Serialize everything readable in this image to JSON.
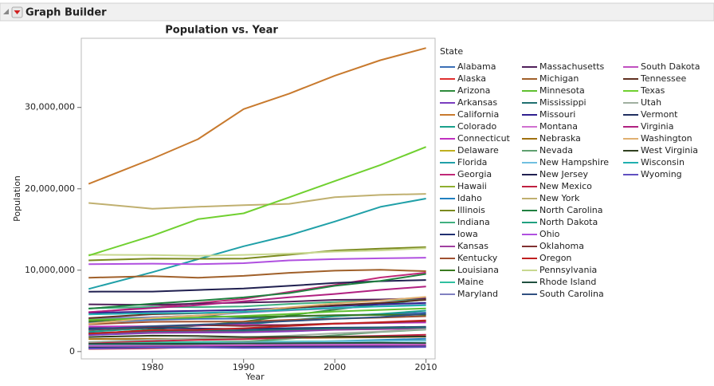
{
  "header": {
    "title": "Graph Builder"
  },
  "chart_data": {
    "type": "line",
    "title": "Population vs. Year",
    "x_label": "Year",
    "y_label": "Population",
    "legend_title": "State",
    "x": [
      1973,
      1980,
      1985,
      1990,
      1995,
      2000,
      2005,
      2010
    ],
    "xlim": [
      1972.2,
      2011
    ],
    "xticks": [
      1980,
      1990,
      2000,
      2010
    ],
    "ylim": [
      -900000,
      38500000
    ],
    "yticks": [
      0,
      {
        "value": 10000000,
        "label": "10,000,000"
      },
      {
        "value": 20000000,
        "label": "20,000,000"
      },
      {
        "value": 30000000,
        "label": "30,000,000"
      }
    ],
    "legend": "right",
    "series": [
      {
        "name": "Alabama",
        "color": "#3b6fb6",
        "values": [
          3540000,
          3900000,
          4020000,
          4050000,
          4300000,
          4450000,
          4570000,
          4780000
        ]
      },
      {
        "name": "Alaska",
        "color": "#e03030",
        "values": [
          330000,
          400000,
          540000,
          550000,
          600000,
          630000,
          660000,
          710000
        ]
      },
      {
        "name": "Arizona",
        "color": "#2e8b3c",
        "values": [
          2120000,
          2720000,
          3180000,
          3680000,
          4430000,
          5160000,
          5840000,
          6390000
        ]
      },
      {
        "name": "Arkansas",
        "color": "#7a3ebf",
        "values": [
          2030000,
          2290000,
          2330000,
          2350000,
          2480000,
          2680000,
          2780000,
          2920000
        ]
      },
      {
        "name": "California",
        "color": "#c87a2e",
        "values": [
          20600000,
          23700000,
          26100000,
          29800000,
          31700000,
          33900000,
          35800000,
          37300000
        ]
      },
      {
        "name": "Colorado",
        "color": "#1aa08c",
        "values": [
          2440000,
          2890000,
          3230000,
          3290000,
          3830000,
          4330000,
          4630000,
          5030000
        ]
      },
      {
        "name": "Connecticut",
        "color": "#c030c0",
        "values": [
          3080000,
          3110000,
          3200000,
          3290000,
          3270000,
          3410000,
          3510000,
          3570000
        ]
      },
      {
        "name": "Delaware",
        "color": "#c0b020",
        "values": [
          570000,
          590000,
          620000,
          670000,
          730000,
          780000,
          840000,
          900000
        ]
      },
      {
        "name": "Florida",
        "color": "#20a0a8",
        "values": [
          7700000,
          9750000,
          11350000,
          12940000,
          14290000,
          15980000,
          17780000,
          18800000
        ]
      },
      {
        "name": "Georgia",
        "color": "#c02878",
        "values": [
          4800000,
          5460000,
          5960000,
          6480000,
          7330000,
          8190000,
          9100000,
          9690000
        ]
      },
      {
        "name": "Hawaii",
        "color": "#8fae30",
        "values": [
          850000,
          970000,
          1040000,
          1110000,
          1190000,
          1210000,
          1270000,
          1360000
        ]
      },
      {
        "name": "Idaho",
        "color": "#2080c0",
        "values": [
          770000,
          940000,
          990000,
          1010000,
          1180000,
          1290000,
          1430000,
          1570000
        ]
      },
      {
        "name": "Illinois",
        "color": "#7b8a1f",
        "values": [
          11200000,
          11430000,
          11400000,
          11430000,
          11900000,
          12420000,
          12650000,
          12830000
        ]
      },
      {
        "name": "Indiana",
        "color": "#40b080",
        "values": [
          5300000,
          5490000,
          5460000,
          5540000,
          5850000,
          6080000,
          6270000,
          6480000
        ]
      },
      {
        "name": "Iowa",
        "color": "#203070",
        "values": [
          2870000,
          2910000,
          2830000,
          2780000,
          2870000,
          2930000,
          2970000,
          3050000
        ]
      },
      {
        "name": "Kansas",
        "color": "#a040a0",
        "values": [
          2280000,
          2360000,
          2430000,
          2480000,
          2600000,
          2690000,
          2750000,
          2850000
        ]
      },
      {
        "name": "Kentucky",
        "color": "#a05030",
        "values": [
          3350000,
          3660000,
          3690000,
          3690000,
          3890000,
          4040000,
          4180000,
          4340000
        ]
      },
      {
        "name": "Louisiana",
        "color": "#3a7a20",
        "values": [
          3700000,
          4210000,
          4410000,
          4220000,
          4350000,
          4470000,
          4500000,
          4530000
        ]
      },
      {
        "name": "Maine",
        "color": "#30c0a0",
        "values": [
          1050000,
          1130000,
          1160000,
          1230000,
          1240000,
          1270000,
          1320000,
          1330000
        ]
      },
      {
        "name": "Maryland",
        "color": "#8080c0",
        "values": [
          4070000,
          4220000,
          4390000,
          4780000,
          5070000,
          5300000,
          5580000,
          5770000
        ]
      },
      {
        "name": "Massachusetts",
        "color": "#50205a",
        "values": [
          5800000,
          5740000,
          5880000,
          6020000,
          6140000,
          6350000,
          6400000,
          6550000
        ]
      },
      {
        "name": "Michigan",
        "color": "#a0602a",
        "values": [
          9080000,
          9260000,
          9080000,
          9300000,
          9680000,
          9940000,
          10050000,
          9880000
        ]
      },
      {
        "name": "Minnesota",
        "color": "#60c030",
        "values": [
          3900000,
          4080000,
          4190000,
          4380000,
          4610000,
          4920000,
          5120000,
          5300000
        ]
      },
      {
        "name": "Mississippi",
        "color": "#207070",
        "values": [
          2270000,
          2520000,
          2590000,
          2580000,
          2720000,
          2840000,
          2900000,
          2970000
        ]
      },
      {
        "name": "Missouri",
        "color": "#302090",
        "values": [
          4760000,
          4920000,
          5000000,
          5120000,
          5380000,
          5600000,
          5800000,
          5990000
        ]
      },
      {
        "name": "Montana",
        "color": "#d070d0",
        "values": [
          720000,
          790000,
          820000,
          800000,
          870000,
          900000,
          940000,
          990000
        ]
      },
      {
        "name": "Nebraska",
        "color": "#a07010",
        "values": [
          1540000,
          1570000,
          1580000,
          1580000,
          1650000,
          1710000,
          1760000,
          1830000
        ]
      },
      {
        "name": "Nevada",
        "color": "#60a070",
        "values": [
          550000,
          800000,
          940000,
          1220000,
          1580000,
          2000000,
          2410000,
          2700000
        ]
      },
      {
        "name": "New Hampshire",
        "color": "#70c0e0",
        "values": [
          790000,
          920000,
          1000000,
          1110000,
          1160000,
          1240000,
          1300000,
          1320000
        ]
      },
      {
        "name": "New Jersey",
        "color": "#202050",
        "values": [
          7360000,
          7370000,
          7570000,
          7750000,
          8080000,
          8430000,
          8650000,
          8790000
        ]
      },
      {
        "name": "New Mexico",
        "color": "#c02040",
        "values": [
          1090000,
          1300000,
          1420000,
          1520000,
          1720000,
          1820000,
          1930000,
          2060000
        ]
      },
      {
        "name": "New York",
        "color": "#c0b070",
        "values": [
          18260000,
          17560000,
          17790000,
          18000000,
          18150000,
          18980000,
          19250000,
          19380000
        ]
      },
      {
        "name": "North Carolina",
        "color": "#208040",
        "values": [
          5270000,
          5880000,
          6250000,
          6660000,
          7190000,
          8080000,
          8680000,
          9540000
        ]
      },
      {
        "name": "North Dakota",
        "color": "#20a080",
        "values": [
          630000,
          650000,
          680000,
          640000,
          650000,
          640000,
          640000,
          670000
        ]
      },
      {
        "name": "Ohio",
        "color": "#b050e0",
        "values": [
          10730000,
          10800000,
          10740000,
          10860000,
          11200000,
          11360000,
          11460000,
          11540000
        ]
      },
      {
        "name": "Oklahoma",
        "color": "#803030",
        "values": [
          2660000,
          3030000,
          3270000,
          3150000,
          3270000,
          3450000,
          3550000,
          3750000
        ]
      },
      {
        "name": "Oregon",
        "color": "#c02020",
        "values": [
          2200000,
          2630000,
          2670000,
          2860000,
          3140000,
          3420000,
          3610000,
          3830000
        ]
      },
      {
        "name": "Pennsylvania",
        "color": "#c8d890",
        "values": [
          11900000,
          11860000,
          11770000,
          11880000,
          12040000,
          12280000,
          12430000,
          12700000
        ]
      },
      {
        "name": "Rhode Island",
        "color": "#205040",
        "values": [
          950000,
          950000,
          970000,
          1000000,
          1020000,
          1050000,
          1070000,
          1050000
        ]
      },
      {
        "name": "South Carolina",
        "color": "#305080",
        "values": [
          2720000,
          3120000,
          3300000,
          3490000,
          3750000,
          4010000,
          4250000,
          4630000
        ]
      },
      {
        "name": "South Dakota",
        "color": "#c050c0",
        "values": [
          690000,
          690000,
          700000,
          700000,
          740000,
          750000,
          780000,
          810000
        ]
      },
      {
        "name": "Tennessee",
        "color": "#603020",
        "values": [
          4110000,
          4590000,
          4710000,
          4880000,
          5330000,
          5700000,
          5990000,
          6350000
        ]
      },
      {
        "name": "Texas",
        "color": "#70d030",
        "values": [
          11800000,
          14230000,
          16270000,
          16990000,
          18960000,
          20950000,
          22930000,
          25150000
        ]
      },
      {
        "name": "Utah",
        "color": "#a0b0a0",
        "values": [
          1170000,
          1470000,
          1640000,
          1730000,
          1950000,
          2240000,
          2460000,
          2760000
        ]
      },
      {
        "name": "Vermont",
        "color": "#203060",
        "values": [
          460000,
          510000,
          530000,
          560000,
          590000,
          610000,
          620000,
          630000
        ]
      },
      {
        "name": "Virginia",
        "color": "#b02080",
        "values": [
          4840000,
          5350000,
          5710000,
          6190000,
          6670000,
          7080000,
          7580000,
          8000000
        ]
      },
      {
        "name": "Washington",
        "color": "#e0b070",
        "values": [
          3420000,
          4130000,
          4410000,
          4900000,
          5430000,
          5910000,
          6260000,
          6720000
        ]
      },
      {
        "name": "West Virginia",
        "color": "#304020",
        "values": [
          1790000,
          1950000,
          1910000,
          1790000,
          1820000,
          1810000,
          1820000,
          1850000
        ]
      },
      {
        "name": "Wisconsin",
        "color": "#20b0b0",
        "values": [
          4570000,
          4710000,
          4750000,
          4890000,
          5140000,
          5370000,
          5540000,
          5690000
        ]
      },
      {
        "name": "Wyoming",
        "color": "#6050c0",
        "values": [
          360000,
          470000,
          500000,
          450000,
          480000,
          490000,
          510000,
          560000
        ]
      }
    ]
  }
}
